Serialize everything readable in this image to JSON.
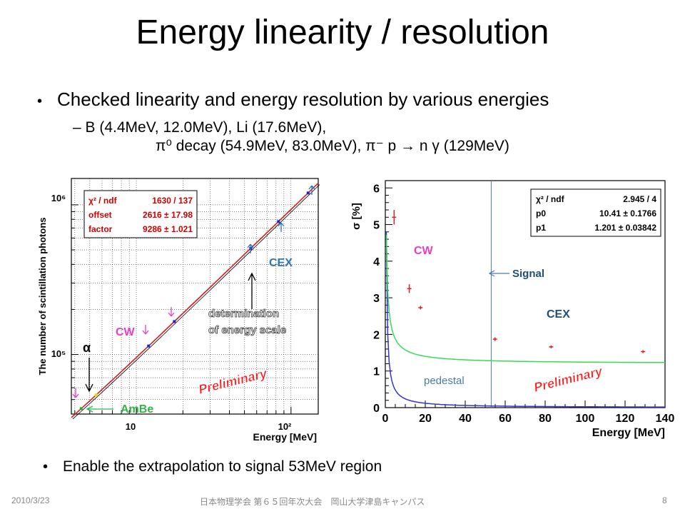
{
  "slide": {
    "title": "Energy linearity / resolution",
    "bullet1": "Checked linearity and energy resolution by various energies",
    "sub_line1": "B (4.4MeV, 12.0MeV), Li (17.6MeV),",
    "sub_line2": "π⁰ decay (54.9MeV, 83.0MeV), π⁻ p → n γ (129MeV)",
    "bullet2": "Enable the extrapolation to signal 53MeV region",
    "footer_date": "2010/3/23",
    "footer_center": "日本物理学会 第６５回年次大会　岡山大学津島キャンパス",
    "page_number": "8"
  },
  "chart_data": [
    {
      "type": "scatter",
      "xlabel": "Energy [MeV]",
      "ylabel": "The number of scintillation photons",
      "xscale": "log",
      "yscale": "log",
      "xlim": [
        3.8,
        150
      ],
      "ylim": [
        40000,
        1500000
      ],
      "x_tick_labels": [
        "10",
        "10²"
      ],
      "y_tick_labels": [
        "10⁵",
        "10⁶"
      ],
      "grid": true,
      "stats_box": {
        "rows": [
          {
            "label": "χ² / ndf",
            "value": "1630 / 137"
          },
          {
            "label": "offset",
            "value": "2616 ± 17.98"
          },
          {
            "label": "factor",
            "value": "9286 ± 1.021"
          }
        ]
      },
      "fit": {
        "offset": 2616,
        "factor": 9286
      },
      "points": [
        {
          "x": 4.4,
          "y": 43500
        },
        {
          "x": 5.5,
          "y": 53700
        },
        {
          "x": 12.0,
          "y": 114000
        },
        {
          "x": 17.6,
          "y": 166000
        },
        {
          "x": 54.9,
          "y": 512000
        },
        {
          "x": 83.0,
          "y": 773000
        },
        {
          "x": 129.0,
          "y": 1200000
        }
      ],
      "annotations": {
        "cex": "CEX",
        "cw": "CW",
        "alpha": "α",
        "amBe": "AmBe",
        "determination_line1": "determination",
        "determination_line2": "of energy scale",
        "preliminary": "Preliminary"
      }
    },
    {
      "type": "scatter",
      "xlabel": "Energy [MeV]",
      "ylabel": "σ [%]",
      "xlim": [
        0,
        140
      ],
      "ylim": [
        0,
        6.2
      ],
      "x_ticks": [
        0,
        20,
        40,
        60,
        80,
        100,
        120,
        140
      ],
      "y_ticks": [
        0,
        1,
        2,
        3,
        4,
        5,
        6
      ],
      "stats_box": {
        "rows": [
          {
            "label": "χ² / ndf",
            "value": "2.945 / 4"
          },
          {
            "label": "p0",
            "value": "10.41 ± 0.1766"
          },
          {
            "label": "p1",
            "value": "1.201 ± 0.03842"
          }
        ]
      },
      "fit": {
        "p0": 10.41,
        "p1": 1.201
      },
      "points": [
        {
          "x": 4.4,
          "y": 5.2,
          "err": 0.2
        },
        {
          "x": 12.0,
          "y": 3.25,
          "err": 0.12
        },
        {
          "x": 17.6,
          "y": 2.73,
          "err": 0.05
        },
        {
          "x": 54.9,
          "y": 1.87,
          "err": 0.05
        },
        {
          "x": 83.0,
          "y": 1.66,
          "err": 0.04
        },
        {
          "x": 129.0,
          "y": 1.53,
          "err": 0.04
        }
      ],
      "pedestal_curve_scale": 2.4,
      "signal_energy": 53,
      "annotations": {
        "cw": "CW",
        "signal": "Signal",
        "cex": "CEX",
        "pedestal": "pedestal",
        "preliminary": "Preliminary"
      }
    }
  ]
}
